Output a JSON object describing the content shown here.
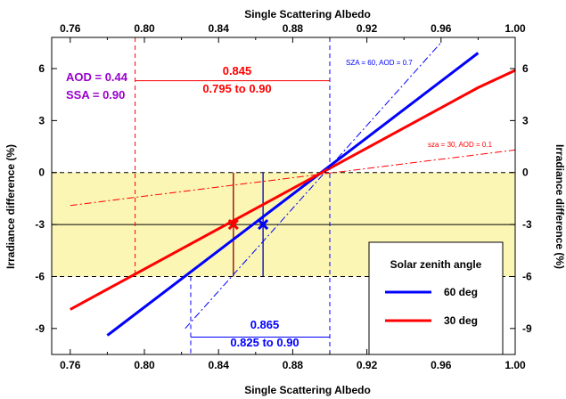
{
  "chart_data": {
    "type": "line",
    "xlabel_top": "Single Scattering Albedo",
    "xlabel_bottom": "Single Scattering Albedo",
    "ylabel_left": "Irradiance difference (%)",
    "ylabel_right": "Irradiance difference (%)",
    "xlim": [
      0.75,
      1.0
    ],
    "ylim": [
      -10.5,
      7.8
    ],
    "xticks": [
      0.76,
      0.8,
      0.84,
      0.88,
      0.92,
      0.96,
      1.0
    ],
    "xtick_labels": [
      "0.76",
      "0.80",
      "0.84",
      "0.88",
      "0.92",
      "0.96",
      "1.00"
    ],
    "yticks": [
      6,
      3,
      0,
      -3,
      -6,
      -9
    ],
    "ytick_labels": [
      "6",
      "3",
      "0",
      "-3",
      "-6",
      "-9"
    ],
    "series": [
      {
        "name": "60 deg",
        "color": "#0000ff",
        "style": "solid",
        "x": [
          0.78,
          0.98
        ],
        "y": [
          -9.4,
          6.9
        ]
      },
      {
        "name": "30 deg",
        "color": "#ff0000",
        "style": "solid",
        "x": [
          0.76,
          0.98,
          1.0
        ],
        "y": [
          -7.9,
          4.9,
          5.9
        ]
      },
      {
        "name": "SZA = 60, AOD = 0.7",
        "color": "#0000ff",
        "style": "dashdot",
        "x": [
          0.822,
          0.96
        ],
        "y": [
          -9.0,
          7.5
        ]
      },
      {
        "name": "sza = 30, AOD = 0.1",
        "color": "#ff0000",
        "style": "dashdot",
        "x": [
          0.76,
          1.0
        ],
        "y": [
          -1.9,
          1.3
        ]
      }
    ],
    "markers": [
      {
        "x": 0.848,
        "y": -3,
        "color": "#ff0000",
        "symbol": "x"
      },
      {
        "x": 0.864,
        "y": -3,
        "color": "#0000ff",
        "symbol": "x"
      }
    ],
    "shaded_band": {
      "y0": -6,
      "y1": 0,
      "color": "#fbf6b4"
    },
    "annotations": {
      "aod": "AOD = 0.44",
      "ssa": "SSA = 0.90",
      "red_value": "0.845",
      "red_range": "0.795 to 0.90",
      "blue_value": "0.865",
      "blue_range": "0.825 to 0.90",
      "blue_line_label": "SZA = 60, AOD = 0.7",
      "red_line_label": "sza = 30, AOD = 0.1"
    },
    "legend": {
      "title": "Solar zenith angle",
      "placement": "bottom-right",
      "entries": [
        {
          "label": "60 deg",
          "color": "#0000ff"
        },
        {
          "label": "30 deg",
          "color": "#ff0000"
        }
      ]
    },
    "colors": {
      "blue": "#0000ff",
      "red": "#ff0000",
      "purple": "#9900cc"
    }
  }
}
